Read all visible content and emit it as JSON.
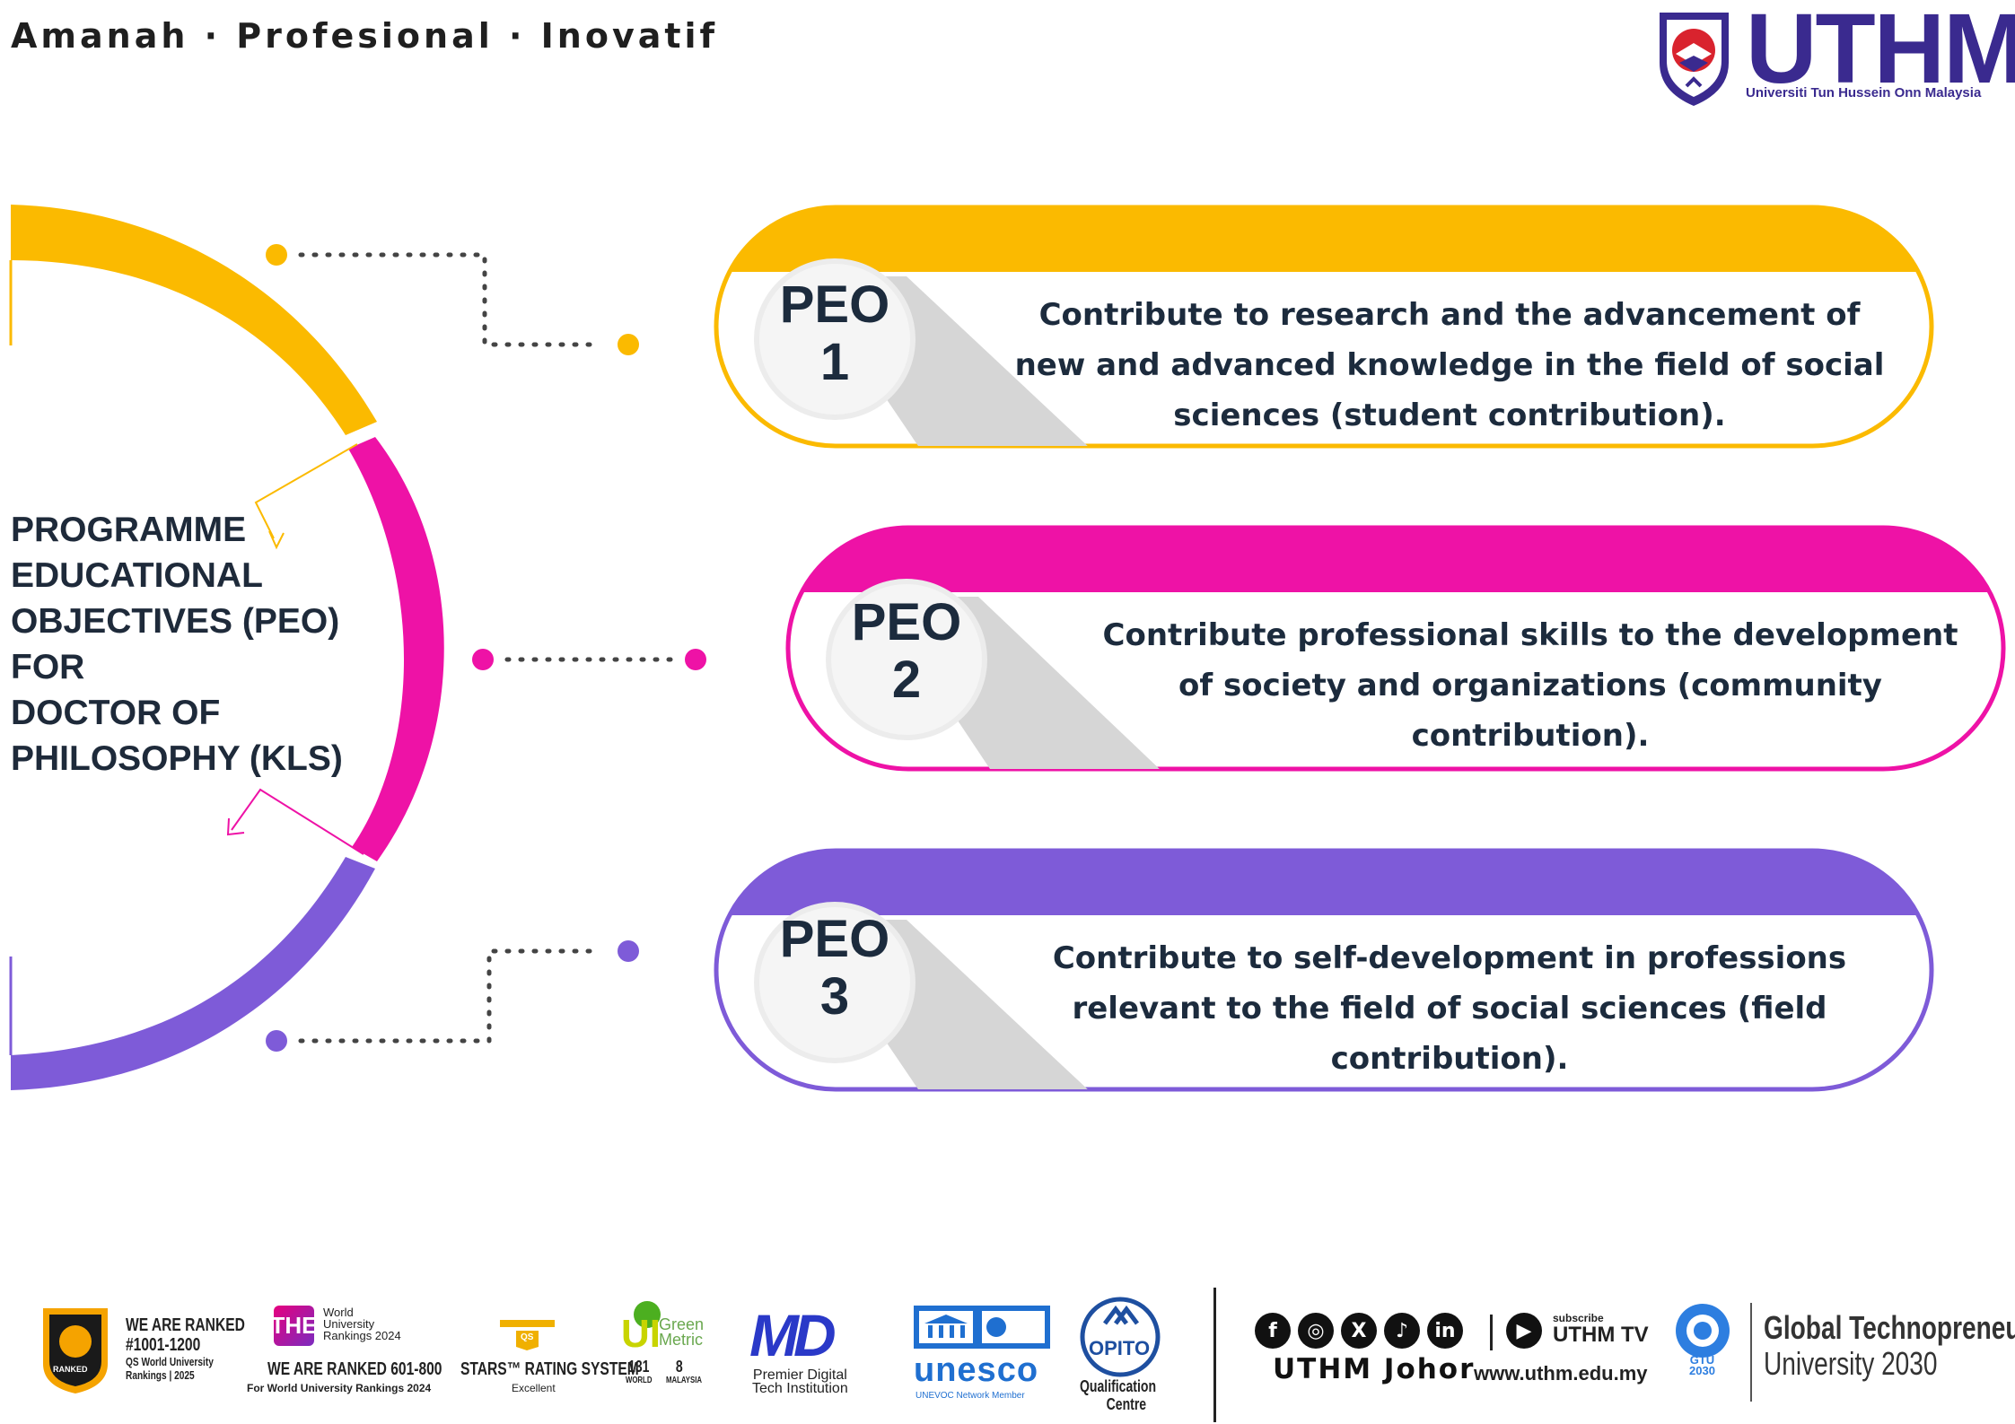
{
  "header": {
    "tagline": "Amanah · Profesional · Inovatif",
    "logo_name": "UTHM",
    "logo_subtitle": "Universiti Tun Hussein Onn Malaysia"
  },
  "title_lines": [
    "PROGRAMME",
    "EDUCATIONAL",
    "OBJECTIVES (PEO)",
    "FOR",
    "DOCTOR OF",
    "PHILOSOPHY (KLS)"
  ],
  "peos": [
    {
      "label_top": "PEO",
      "label_num": "1",
      "color": "#FBBA00",
      "lines": [
        "Contribute to research and the advancement of",
        "new and advanced knowledge in the field of social",
        "sciences (student contribution)."
      ]
    },
    {
      "label_top": "PEO",
      "label_num": "2",
      "color": "#EE12A6",
      "lines": [
        "Contribute professional skills to the development",
        "of society and organizations (community",
        "contribution)."
      ]
    },
    {
      "label_top": "PEO",
      "label_num": "3",
      "color": "#7E5BD8",
      "lines": [
        "Contribute to self-development in professions",
        "relevant to the field of social sciences (field",
        "contribution)."
      ]
    }
  ],
  "footer": {
    "qs_rank_line1": "WE ARE RANKED",
    "qs_rank_line2": "#1001-1200",
    "qs_rank_line3": "QS World University",
    "qs_rank_line4": "Rankings | 2025",
    "qs_badge": "RANKED",
    "the_logo": "THE",
    "the_line1": "World",
    "the_line2": "University",
    "the_line3": "Rankings 2024",
    "the_rank": "WE ARE RANKED 601-800",
    "the_sub": "For World University Rankings 2024",
    "qs_stars": "QS",
    "stars_text": "STARS™ RATING SYSTEM",
    "stars_sub": "Excellent",
    "green_ui": "UI",
    "green_name1": "Green",
    "green_name2": "Metric",
    "green_world_num": "131",
    "green_world": "WORLD",
    "green_my_num": "8",
    "green_my": "MALAYSIA",
    "md_logo": "MD",
    "md_line1": "Premier Digital",
    "md_line2": "Tech Institution",
    "unesco": "unesco",
    "unevoc": "UNEVOC Network Member",
    "opito": "OPITO",
    "opito_line1": "Qualification",
    "opito_line2": "Centre",
    "social_handle": "UTHM Johor",
    "subscribe": "subscribe",
    "uthm_tv": "UTHM TV",
    "website": "www.uthm.edu.my",
    "gtu": "GTU",
    "gtu_year": "2030",
    "gtu_line1": "Global Technopreneur",
    "gtu_line2": "University 2030"
  }
}
